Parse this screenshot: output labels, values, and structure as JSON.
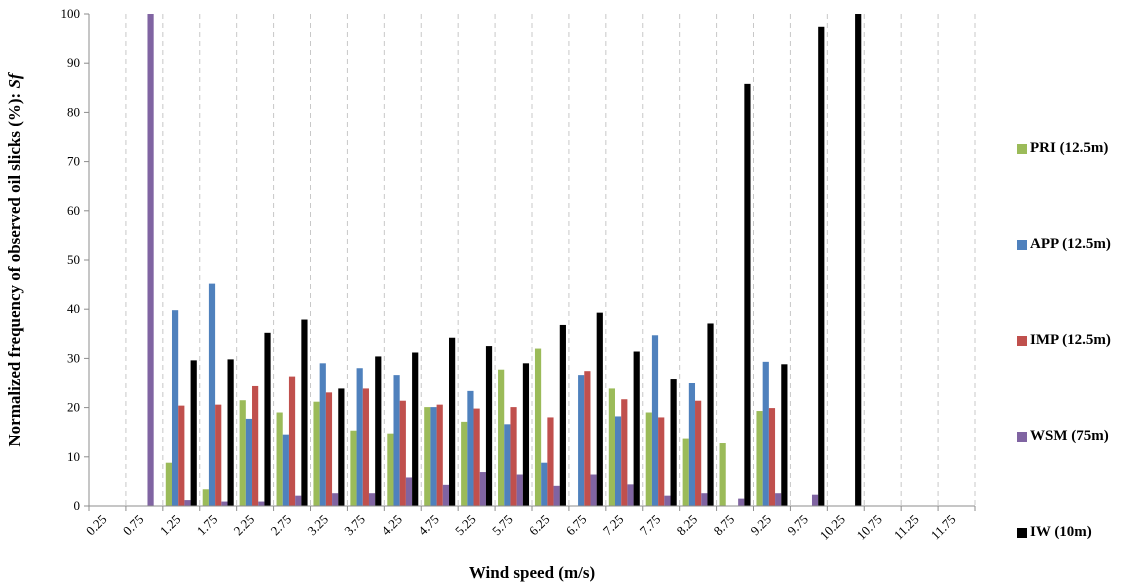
{
  "chart_data": {
    "type": "bar",
    "xlabel": "Wind speed (m/s)",
    "ylabel_main": "Normalized frequency of observed oil slicks (%): ",
    "ylabel_italic": "Sf",
    "ylim": [
      0,
      100
    ],
    "yticks": [
      "0",
      "10",
      "20",
      "30",
      "40",
      "50",
      "60",
      "70",
      "80",
      "90",
      "100"
    ],
    "grid": "vertical dashed",
    "legend_position": "right",
    "categories": [
      "0.25",
      "0.75",
      "1.25",
      "1.75",
      "2.25",
      "2.75",
      "3.25",
      "3.75",
      "4.25",
      "4.75",
      "5.25",
      "5.75",
      "6.25",
      "6.75",
      "7.25",
      "7.75",
      "8.25",
      "8.75",
      "9.25",
      "9.75",
      "10.25",
      "10.75",
      "11.25",
      "11.75"
    ],
    "series": [
      {
        "name": "PRI (12.5m)",
        "color": "#9BBB59",
        "values": [
          0,
          0,
          8.8,
          3.4,
          21.5,
          19,
          21.2,
          15.3,
          14.7,
          20.1,
          17.1,
          27.7,
          32,
          0,
          23.9,
          19,
          13.7,
          12.8,
          19.3,
          0,
          0,
          0,
          0,
          0
        ]
      },
      {
        "name": "APP (12.5m)",
        "color": "#4F81BD",
        "values": [
          0,
          0,
          39.8,
          45.2,
          17.7,
          14.5,
          29,
          28,
          26.6,
          20.1,
          23.4,
          16.6,
          8.8,
          26.6,
          18.2,
          34.7,
          25,
          0,
          29.3,
          0,
          0,
          0,
          0,
          0
        ]
      },
      {
        "name": "IMP (12.5m)",
        "color": "#C0504D",
        "values": [
          0,
          0,
          20.4,
          20.6,
          24.4,
          26.3,
          23.1,
          23.9,
          21.4,
          20.6,
          19.8,
          20.1,
          18,
          27.4,
          21.7,
          18,
          21.4,
          0,
          19.9,
          0,
          0,
          0,
          0,
          0
        ]
      },
      {
        "name": "WSM (75m)",
        "color": "#8064A2",
        "values": [
          0,
          100,
          1.2,
          0.9,
          0.9,
          2.1,
          2.6,
          2.6,
          5.8,
          4.3,
          6.9,
          6.4,
          4.1,
          6.4,
          4.4,
          2.1,
          2.6,
          1.5,
          2.6,
          2.3,
          0,
          0,
          0,
          0
        ]
      },
      {
        "name": "IW (10m)",
        "color": "#000000",
        "values": [
          0,
          0,
          29.6,
          29.8,
          35.2,
          37.9,
          23.9,
          30.4,
          31.2,
          34.2,
          32.5,
          29,
          36.8,
          39.3,
          31.4,
          25.8,
          37.1,
          85.8,
          28.8,
          97.4,
          100,
          0,
          0,
          0
        ]
      }
    ]
  }
}
